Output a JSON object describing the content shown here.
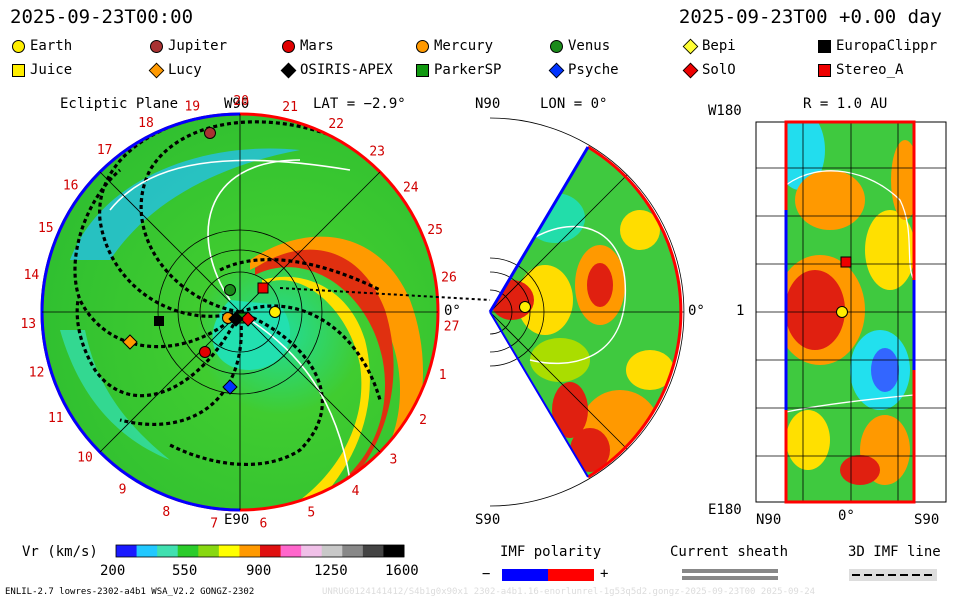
{
  "header": {
    "time_left": "2025-09-23T00:00",
    "time_right": "2025-09-23T00 +0.00 day"
  },
  "legend": [
    {
      "name": "Earth",
      "shape": "circle",
      "color": "#ffee00"
    },
    {
      "name": "Jupiter",
      "shape": "circle",
      "color": "#a83232"
    },
    {
      "name": "Mars",
      "shape": "circle",
      "color": "#e00000"
    },
    {
      "name": "Mercury",
      "shape": "circle",
      "color": "#ff9900"
    },
    {
      "name": "Venus",
      "shape": "circle",
      "color": "#1b8a1b"
    },
    {
      "name": "Bepi",
      "shape": "diamond",
      "color": "#ffff33"
    },
    {
      "name": "EuropaClippr",
      "shape": "square",
      "color": "#000000"
    },
    {
      "name": "Juice",
      "shape": "square",
      "color": "#ffee00"
    },
    {
      "name": "Lucy",
      "shape": "diamond",
      "color": "#ff9900"
    },
    {
      "name": "OSIRIS-APEX",
      "shape": "diamond",
      "color": "#000000"
    },
    {
      "name": "ParkerSP",
      "shape": "square",
      "color": "#119911"
    },
    {
      "name": "Psyche",
      "shape": "diamond",
      "color": "#0033ff"
    },
    {
      "name": "SolO",
      "shape": "diamond",
      "color": "#ee0000"
    },
    {
      "name": "Stereo_A",
      "shape": "square",
      "color": "#ee0000"
    }
  ],
  "panel_ecliptic": {
    "title": "Ecliptic Plane",
    "top_label": "W90",
    "lat": "LAT = −2.9°",
    "bottom_label": "E90",
    "right_label": "0°",
    "ticks": [
      "19",
      "20",
      "21",
      "22",
      "23",
      "24",
      "25",
      "26",
      "27",
      "1",
      "2",
      "3",
      "4",
      "5",
      "6",
      "7",
      "8",
      "9",
      "10",
      "11",
      "12",
      "13",
      "14",
      "15",
      "16",
      "17",
      "18"
    ]
  },
  "panel_meridional": {
    "top_label": "N90",
    "lon": "LON = 0°",
    "right_label": "0°",
    "bottom_label": "S90"
  },
  "panel_sphere": {
    "title": "R = 1.0 AU",
    "top_left": "W180",
    "mid_left": "1",
    "bottom_left": "E180",
    "x_left": "N90",
    "x_mid": "0°",
    "x_right": "S90"
  },
  "colorbar": {
    "label": "Vr (km/s)",
    "ticks": [
      "200",
      "550",
      "900",
      "1250",
      "1600"
    ],
    "stops": [
      "#1a1aff",
      "#22c8ff",
      "#40e0b0",
      "#2bcc2b",
      "#88d811",
      "#ffff00",
      "#ff9900",
      "#e01010",
      "#ff66cc",
      "#f0c0e8",
      "#c8c8c8",
      "#888888",
      "#444444",
      "#000000"
    ]
  },
  "imf": {
    "label": "IMF polarity",
    "minus": "−",
    "plus": "+",
    "neg_color": "#0000ff",
    "pos_color": "#ff0000"
  },
  "sheath": {
    "label": "Current sheath"
  },
  "imf_line": {
    "label": "3D IMF line"
  },
  "footer": {
    "left": "ENLIL-2.7 lowres-2302-a4b1 WSA_V2.2 GONGZ-2302",
    "right": "UNRUG0124141412/S4b1g0x90x1 2302-a4b1.16-enorlunrel-1g53q5d2.gongz-2025-09-23T00   2025-09-24"
  }
}
